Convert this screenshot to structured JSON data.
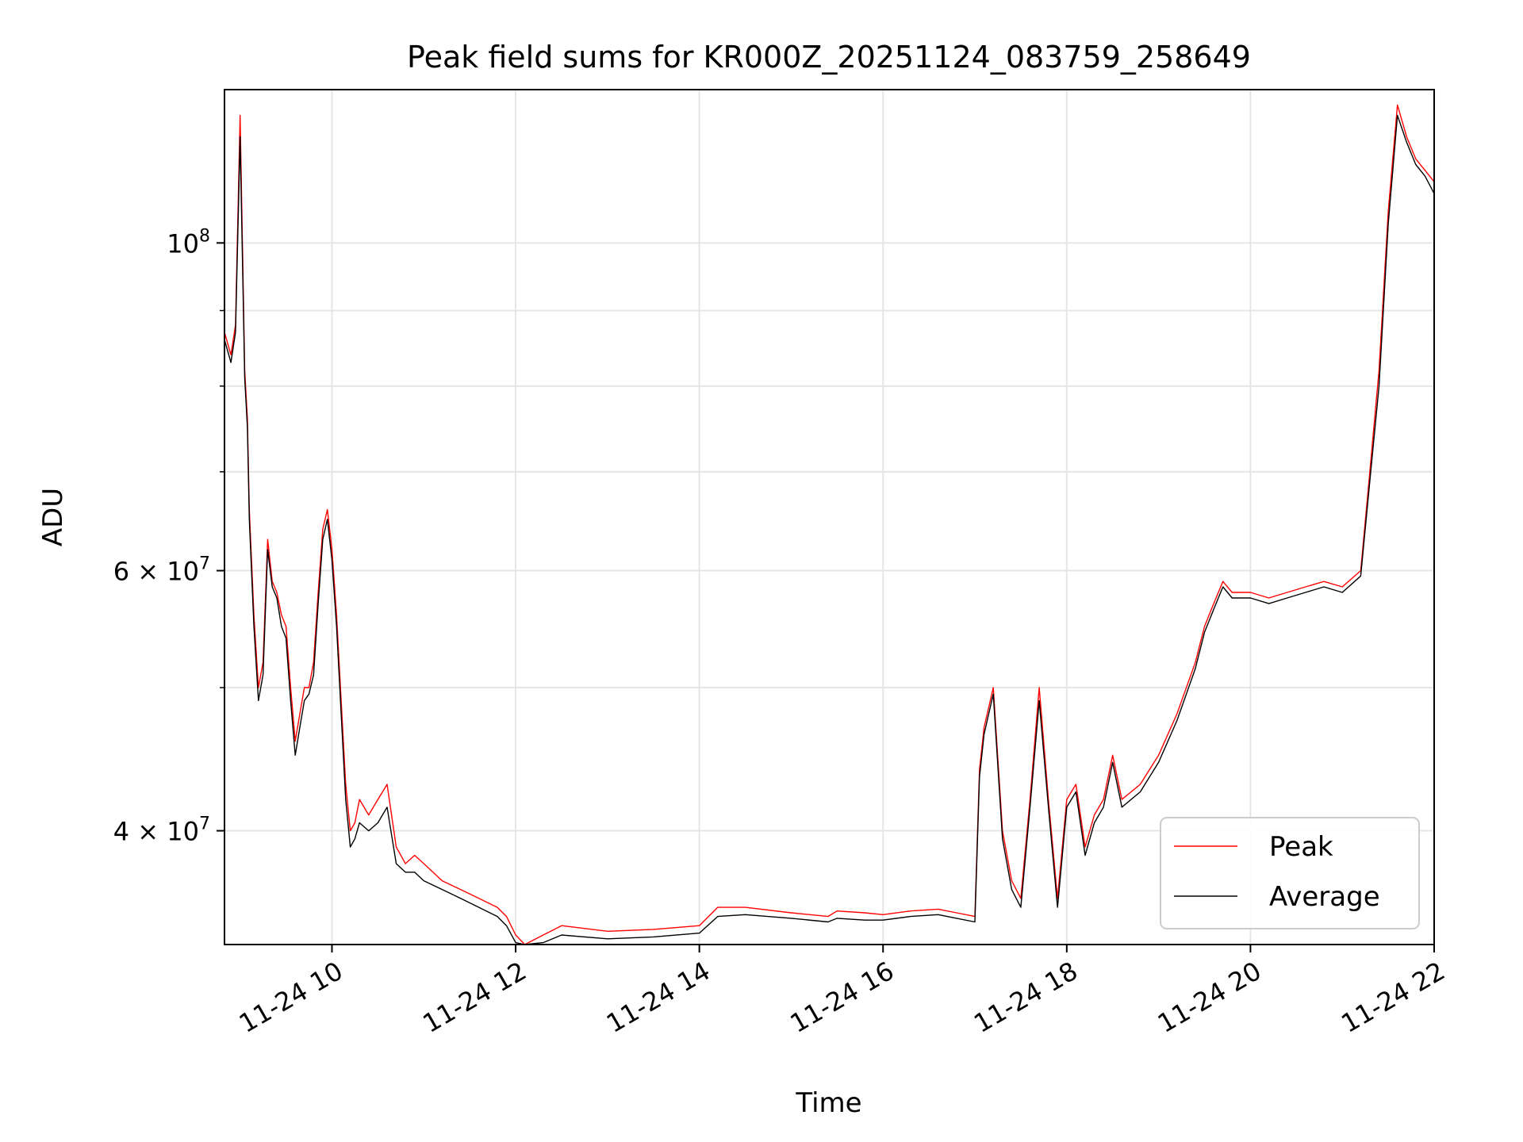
{
  "chart_data": {
    "type": "line",
    "title": "Peak field sums for KR000Z_20251124_083759_258649",
    "xlabel": "Time",
    "ylabel": "ADU",
    "y_scale": "log",
    "xlim_hours": [
      8.83,
      22.0
    ],
    "ylim": [
      33500000,
      127000000
    ],
    "grid": true,
    "legend_position": "lower-right",
    "x_ticks": [
      {
        "label": "11-24 10",
        "hour": 10
      },
      {
        "label": "11-24 12",
        "hour": 12
      },
      {
        "label": "11-24 14",
        "hour": 14
      },
      {
        "label": "11-24 16",
        "hour": 16
      },
      {
        "label": "11-24 18",
        "hour": 18
      },
      {
        "label": "11-24 20",
        "hour": 20
      },
      {
        "label": "11-24 22",
        "hour": 22
      }
    ],
    "y_ticks": [
      {
        "mant": "",
        "exp": "8",
        "value": 100000000
      },
      {
        "mant": "6 × 10",
        "exp": "7",
        "value": 60000000
      },
      {
        "mant": "4 × 10",
        "exp": "7",
        "value": 40000000
      }
    ],
    "y_minor_ticks": [
      90000000,
      80000000,
      70000000,
      50000000
    ],
    "series": [
      {
        "name": "Peak",
        "color": "#ff0000",
        "hours": [
          8.83,
          8.9,
          8.95,
          9.0,
          9.05,
          9.08,
          9.1,
          9.15,
          9.2,
          9.25,
          9.3,
          9.35,
          9.4,
          9.45,
          9.5,
          9.55,
          9.6,
          9.65,
          9.7,
          9.75,
          9.8,
          9.85,
          9.9,
          9.95,
          10.0,
          10.05,
          10.1,
          10.15,
          10.2,
          10.25,
          10.3,
          10.4,
          10.5,
          10.6,
          10.7,
          10.8,
          10.9,
          11.0,
          11.2,
          11.4,
          11.6,
          11.8,
          11.9,
          12.0,
          12.1,
          12.3,
          12.5,
          13.0,
          13.5,
          14.0,
          14.2,
          14.5,
          15.0,
          15.4,
          15.5,
          15.8,
          16.0,
          16.3,
          16.6,
          16.8,
          17.0,
          17.05,
          17.1,
          17.2,
          17.3,
          17.4,
          17.5,
          17.6,
          17.7,
          17.8,
          17.9,
          18.0,
          18.1,
          18.2,
          18.3,
          18.4,
          18.5,
          18.6,
          18.8,
          19.0,
          19.2,
          19.4,
          19.5,
          19.6,
          19.7,
          19.8,
          20.0,
          20.2,
          20.4,
          20.6,
          20.8,
          21.0,
          21.2,
          21.3,
          21.4,
          21.5,
          21.6,
          21.7,
          21.8,
          21.9,
          22.0
        ],
        "values": [
          87000000,
          84000000,
          88000000,
          122000000,
          82000000,
          76000000,
          66000000,
          56000000,
          50000000,
          52000000,
          63000000,
          59000000,
          58000000,
          56000000,
          55000000,
          50000000,
          46000000,
          48000000,
          50000000,
          50000000,
          52000000,
          58000000,
          64000000,
          66000000,
          62000000,
          56000000,
          49000000,
          43000000,
          40000000,
          40500000,
          42000000,
          41000000,
          42000000,
          43000000,
          39000000,
          38000000,
          38500000,
          38000000,
          37000000,
          36500000,
          36000000,
          35500000,
          35000000,
          34000000,
          33500000,
          34000000,
          34500000,
          34200000,
          34300000,
          34500000,
          35500000,
          35500000,
          35200000,
          35000000,
          35300000,
          35200000,
          35100000,
          35300000,
          35400000,
          35200000,
          35000000,
          44000000,
          47000000,
          50000000,
          40000000,
          37000000,
          36000000,
          42000000,
          50000000,
          42000000,
          36000000,
          42000000,
          43000000,
          39000000,
          41000000,
          42000000,
          45000000,
          42000000,
          43000000,
          45000000,
          48000000,
          52000000,
          55000000,
          57000000,
          59000000,
          58000000,
          58000000,
          57500000,
          58000000,
          58500000,
          59000000,
          58500000,
          60000000,
          70000000,
          82000000,
          105000000,
          124000000,
          118000000,
          114000000,
          112000000,
          110000000
        ]
      },
      {
        "name": "Average",
        "color": "#000000",
        "hours": [
          8.83,
          8.9,
          8.95,
          9.0,
          9.05,
          9.08,
          9.1,
          9.15,
          9.2,
          9.25,
          9.3,
          9.35,
          9.4,
          9.45,
          9.5,
          9.55,
          9.6,
          9.65,
          9.7,
          9.75,
          9.8,
          9.85,
          9.9,
          9.95,
          10.0,
          10.05,
          10.1,
          10.15,
          10.2,
          10.25,
          10.3,
          10.4,
          10.5,
          10.6,
          10.7,
          10.8,
          10.9,
          11.0,
          11.2,
          11.4,
          11.6,
          11.8,
          11.9,
          12.0,
          12.1,
          12.3,
          12.5,
          13.0,
          13.5,
          14.0,
          14.2,
          14.5,
          15.0,
          15.4,
          15.5,
          15.8,
          16.0,
          16.3,
          16.6,
          16.8,
          17.0,
          17.05,
          17.1,
          17.2,
          17.3,
          17.4,
          17.5,
          17.6,
          17.7,
          17.8,
          17.9,
          18.0,
          18.1,
          18.2,
          18.3,
          18.4,
          18.5,
          18.6,
          18.8,
          19.0,
          19.2,
          19.4,
          19.5,
          19.6,
          19.7,
          19.8,
          20.0,
          20.2,
          20.4,
          20.6,
          20.8,
          21.0,
          21.2,
          21.3,
          21.4,
          21.5,
          21.6,
          21.7,
          21.8,
          21.9,
          22.0
        ],
        "values": [
          86000000,
          83000000,
          87000000,
          118000000,
          81000000,
          75000000,
          65000000,
          55000000,
          49000000,
          51000000,
          62000000,
          58500000,
          57500000,
          55000000,
          54000000,
          49000000,
          45000000,
          47000000,
          49000000,
          49500000,
          51000000,
          57000000,
          63000000,
          65000000,
          61000000,
          55000000,
          48000000,
          42000000,
          39000000,
          39500000,
          40500000,
          40000000,
          40500000,
          41500000,
          38000000,
          37500000,
          37500000,
          37000000,
          36500000,
          36000000,
          35500000,
          35000000,
          34500000,
          33600000,
          33200000,
          33600000,
          34000000,
          33800000,
          33900000,
          34100000,
          35000000,
          35100000,
          34900000,
          34700000,
          34900000,
          34800000,
          34800000,
          35000000,
          35100000,
          34900000,
          34700000,
          43500000,
          46500000,
          49500000,
          39500000,
          36500000,
          35500000,
          41500000,
          49000000,
          41500000,
          35500000,
          41500000,
          42500000,
          38500000,
          40500000,
          41500000,
          44500000,
          41500000,
          42500000,
          44500000,
          47500000,
          51500000,
          54500000,
          56500000,
          58500000,
          57500000,
          57500000,
          57000000,
          57500000,
          58000000,
          58500000,
          58000000,
          59500000,
          69000000,
          80000000,
          103000000,
          122000000,
          117000000,
          113000000,
          111000000,
          108000000
        ]
      }
    ]
  }
}
